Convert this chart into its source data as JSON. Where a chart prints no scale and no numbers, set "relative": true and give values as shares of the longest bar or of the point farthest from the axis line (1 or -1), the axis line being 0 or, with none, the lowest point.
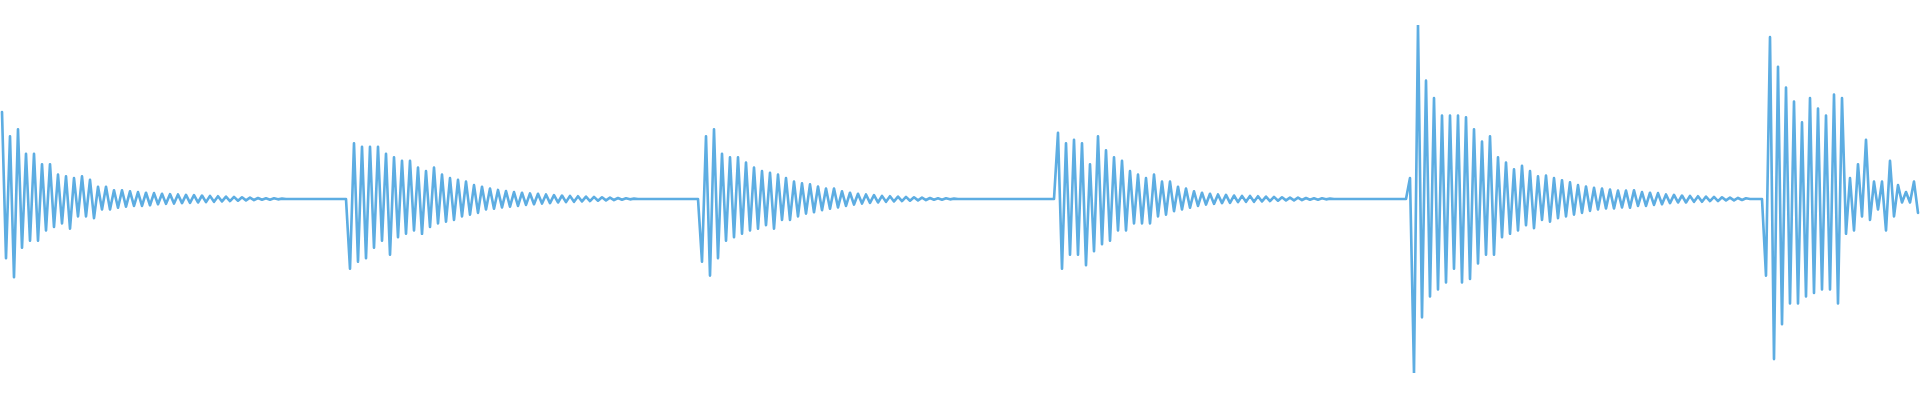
{
  "chart_data": {
    "type": "line",
    "relative": true,
    "categories": [
      null,
      null,
      null,
      null,
      null,
      null,
      null,
      null,
      null,
      null,
      null,
      null,
      null,
      null,
      null,
      null,
      null,
      null,
      null,
      null,
      null,
      null,
      null,
      null,
      null,
      null,
      null,
      null,
      null,
      null,
      null,
      null,
      null,
      null,
      null,
      null,
      null,
      null,
      null,
      null,
      null,
      null,
      null,
      null,
      null,
      null,
      null,
      null,
      null,
      null,
      null,
      null,
      null,
      null,
      null,
      null,
      null,
      null,
      null,
      null,
      null,
      null,
      null,
      null,
      null,
      null,
      null,
      null,
      null,
      null,
      null,
      null,
      null,
      null,
      null,
      null,
      null,
      null,
      null,
      null,
      null,
      null,
      null,
      null,
      null,
      null,
      null,
      null,
      null,
      null,
      null,
      null,
      null,
      null,
      null,
      null,
      null,
      null,
      null,
      null,
      null,
      null,
      null,
      null,
      null,
      null,
      null,
      null,
      null,
      null,
      null,
      null,
      null,
      null,
      null,
      null,
      null,
      null,
      null,
      null,
      null,
      null,
      null,
      null,
      null,
      null,
      null,
      null,
      null,
      null,
      null,
      null,
      null,
      null,
      null,
      null,
      null,
      null,
      null,
      null,
      null,
      null,
      null,
      null,
      null,
      null,
      null,
      null,
      null,
      null,
      null,
      null,
      null,
      null,
      null,
      null,
      null,
      null,
      null,
      null,
      null,
      null,
      null,
      null,
      null,
      null,
      null,
      null,
      null,
      null,
      null,
      null,
      null,
      null,
      null,
      null,
      null,
      null,
      null,
      null,
      null,
      null,
      null,
      null,
      null,
      null,
      null,
      null,
      null,
      null,
      null,
      null,
      null,
      null,
      null,
      null,
      null,
      null,
      null,
      null,
      null,
      null,
      null,
      null,
      null,
      null,
      null,
      null,
      null,
      null,
      null,
      null,
      null,
      null,
      null,
      null,
      null,
      null,
      null,
      null,
      null,
      null,
      null,
      null,
      null,
      null,
      null,
      null,
      null,
      null,
      null,
      null,
      null,
      null,
      null,
      null,
      null,
      null,
      null,
      null,
      null,
      null,
      null,
      null,
      null,
      null,
      null,
      null,
      null,
      null,
      null,
      null,
      null,
      null,
      null,
      null,
      null,
      null,
      null,
      null,
      null,
      null,
      null,
      null,
      null,
      null,
      null,
      null,
      null,
      null,
      null,
      null,
      null,
      null,
      null,
      null,
      null,
      null,
      null,
      null,
      null,
      null,
      null,
      null,
      null,
      null,
      null,
      null,
      null,
      null,
      null,
      null,
      null,
      null,
      null,
      null,
      null,
      null,
      null,
      null,
      null,
      null,
      null,
      null,
      null,
      null,
      null,
      null,
      null,
      null,
      null,
      null,
      null,
      null,
      null,
      null,
      null,
      null,
      null,
      null,
      null,
      null,
      null,
      null,
      null,
      null,
      null,
      null,
      null,
      null,
      null,
      null,
      null,
      null,
      null,
      null,
      null,
      null,
      null,
      null,
      null,
      null,
      null,
      null,
      null,
      null,
      null,
      null,
      null,
      null,
      null,
      null,
      null,
      null,
      null,
      null,
      null,
      null,
      null,
      null,
      null,
      null,
      null,
      null,
      null,
      null,
      null,
      null,
      null,
      null,
      null,
      null,
      null,
      null,
      null,
      null,
      null,
      null,
      null,
      null,
      null,
      null,
      null,
      null,
      null,
      null,
      null,
      null,
      null,
      null,
      null,
      null,
      null,
      null,
      null,
      null,
      null,
      null,
      null,
      null,
      null,
      null,
      null,
      null,
      null,
      null,
      null,
      null,
      null,
      null,
      null,
      null,
      null,
      null,
      null,
      null,
      null,
      null,
      null,
      null,
      null,
      null,
      null,
      null,
      null,
      null,
      null,
      null,
      null,
      null,
      null,
      null,
      null,
      null,
      null,
      null,
      null,
      null,
      null,
      null,
      null,
      null,
      null,
      null,
      null,
      null,
      null,
      null,
      null,
      null,
      null,
      null,
      null,
      null,
      null,
      null,
      null,
      null,
      null,
      null,
      null,
      null,
      null,
      null,
      null,
      null,
      null,
      null,
      null,
      null,
      null,
      null,
      null,
      null,
      null,
      null,
      null,
      null,
      null,
      null
    ],
    "series": [
      {
        "color": "#5dade2",
        "values": [
          0.75,
          0.33,
          0.68,
          0.275,
          0.7,
          0.36,
          0.63,
          0.38,
          0.63,
          0.38,
          0.6,
          0.41,
          0.6,
          0.42,
          0.57,
          0.43,
          0.565,
          0.415,
          0.56,
          0.45,
          0.565,
          0.45,
          0.555,
          0.445,
          0.535,
          0.47,
          0.535,
          0.47,
          0.525,
          0.475,
          0.525,
          0.478,
          0.522,
          0.48,
          0.52,
          0.48,
          0.518,
          0.482,
          0.517,
          0.485,
          0.515,
          0.486,
          0.514,
          0.487,
          0.513,
          0.488,
          0.512,
          0.489,
          0.511,
          0.49,
          0.51,
          0.491,
          0.509,
          0.492,
          0.508,
          0.493,
          0.507,
          0.494,
          0.506,
          0.495,
          0.505,
          0.496,
          0.504,
          0.497,
          0.503,
          0.498,
          0.502,
          0.498,
          0.502,
          0.499,
          0.501,
          0.5,
          0.5,
          0.5,
          0.5,
          0.5,
          0.5,
          0.5,
          0.5,
          0.5,
          0.5,
          0.5,
          0.5,
          0.5,
          0.5,
          0.5,
          0.5,
          0.3,
          0.66,
          0.32,
          0.65,
          0.33,
          0.65,
          0.36,
          0.65,
          0.38,
          0.63,
          0.34,
          0.62,
          0.39,
          0.61,
          0.4,
          0.61,
          0.41,
          0.59,
          0.4,
          0.58,
          0.42,
          0.59,
          0.43,
          0.57,
          0.435,
          0.56,
          0.44,
          0.555,
          0.45,
          0.55,
          0.455,
          0.54,
          0.46,
          0.535,
          0.47,
          0.53,
          0.472,
          0.526,
          0.476,
          0.523,
          0.478,
          0.52,
          0.48,
          0.518,
          0.483,
          0.516,
          0.485,
          0.515,
          0.487,
          0.513,
          0.488,
          0.511,
          0.49,
          0.51,
          0.491,
          0.509,
          0.492,
          0.508,
          0.493,
          0.507,
          0.494,
          0.506,
          0.495,
          0.505,
          0.496,
          0.504,
          0.497,
          0.503,
          0.498,
          0.502,
          0.499,
          0.501,
          0.5,
          0.5,
          0.5,
          0.5,
          0.5,
          0.5,
          0.5,
          0.5,
          0.5,
          0.5,
          0.5,
          0.5,
          0.5,
          0.5,
          0.5,
          0.5,
          0.32,
          0.68,
          0.28,
          0.7,
          0.33,
          0.63,
          0.38,
          0.62,
          0.39,
          0.62,
          0.4,
          0.605,
          0.41,
          0.59,
          0.415,
          0.58,
          0.425,
          0.575,
          0.415,
          0.57,
          0.44,
          0.56,
          0.44,
          0.55,
          0.45,
          0.545,
          0.458,
          0.542,
          0.462,
          0.536,
          0.468,
          0.53,
          0.472,
          0.53,
          0.476,
          0.522,
          0.48,
          0.518,
          0.484,
          0.515,
          0.487,
          0.513,
          0.489,
          0.511,
          0.49,
          0.509,
          0.492,
          0.508,
          0.493,
          0.507,
          0.494,
          0.506,
          0.495,
          0.505,
          0.496,
          0.504,
          0.497,
          0.503,
          0.498,
          0.502,
          0.498,
          0.502,
          0.499,
          0.501,
          0.5,
          0.5,
          0.5,
          0.5,
          0.5,
          0.5,
          0.5,
          0.5,
          0.5,
          0.5,
          0.5,
          0.5,
          0.5,
          0.5,
          0.5,
          0.5,
          0.5,
          0.5,
          0.5,
          0.5,
          0.5,
          0.5,
          0.5,
          0.5,
          0.5,
          0.69,
          0.3,
          0.66,
          0.34,
          0.67,
          0.34,
          0.66,
          0.31,
          0.6,
          0.35,
          0.68,
          0.37,
          0.64,
          0.38,
          0.62,
          0.41,
          0.61,
          0.41,
          0.58,
          0.43,
          0.57,
          0.43,
          0.56,
          0.43,
          0.57,
          0.45,
          0.55,
          0.455,
          0.55,
          0.465,
          0.535,
          0.47,
          0.53,
          0.475,
          0.522,
          0.48,
          0.518,
          0.484,
          0.515,
          0.486,
          0.513,
          0.488,
          0.512,
          0.489,
          0.51,
          0.491,
          0.509,
          0.492,
          0.509,
          0.492,
          0.508,
          0.493,
          0.507,
          0.494,
          0.506,
          0.495,
          0.505,
          0.496,
          0.504,
          0.496,
          0.504,
          0.497,
          0.503,
          0.498,
          0.502,
          0.498,
          0.502,
          0.499,
          0.501,
          0.5,
          0.5,
          0.5,
          0.5,
          0.5,
          0.5,
          0.5,
          0.5,
          0.5,
          0.5,
          0.5,
          0.5,
          0.5,
          0.5,
          0.5,
          0.5,
          0.5,
          0.5,
          0.5,
          0.56,
          0.0,
          1.0,
          0.16,
          0.84,
          0.22,
          0.79,
          0.24,
          0.74,
          0.26,
          0.74,
          0.3,
          0.74,
          0.26,
          0.735,
          0.27,
          0.7,
          0.315,
          0.665,
          0.34,
          0.68,
          0.34,
          0.62,
          0.39,
          0.605,
          0.4,
          0.585,
          0.41,
          0.595,
          0.425,
          0.58,
          0.416,
          0.565,
          0.44,
          0.567,
          0.435,
          0.56,
          0.445,
          0.554,
          0.45,
          0.548,
          0.455,
          0.54,
          0.46,
          0.536,
          0.466,
          0.532,
          0.47,
          0.53,
          0.473,
          0.527,
          0.473,
          0.524,
          0.476,
          0.524,
          0.475,
          0.525,
          0.48,
          0.52,
          0.48,
          0.518,
          0.483,
          0.517,
          0.485,
          0.513,
          0.488,
          0.512,
          0.49,
          0.51,
          0.49,
          0.509,
          0.492,
          0.508,
          0.492,
          0.507,
          0.494,
          0.506,
          0.494,
          0.505,
          0.496,
          0.504,
          0.496,
          0.503,
          0.497,
          0.502,
          0.5,
          0.5,
          0.5,
          0.5,
          0.28,
          0.965,
          0.04,
          0.88,
          0.14,
          0.82,
          0.2,
          0.78,
          0.2,
          0.72,
          0.22,
          0.79,
          0.23,
          0.76,
          0.24,
          0.74,
          0.24,
          0.8,
          0.2,
          0.79,
          0.4,
          0.56,
          0.41,
          0.6,
          0.45,
          0.67,
          0.44,
          0.55,
          0.47,
          0.55,
          0.41,
          0.61,
          0.45,
          0.54,
          0.49,
          0.52,
          0.49,
          0.55,
          0.46
        ]
      }
    ]
  }
}
